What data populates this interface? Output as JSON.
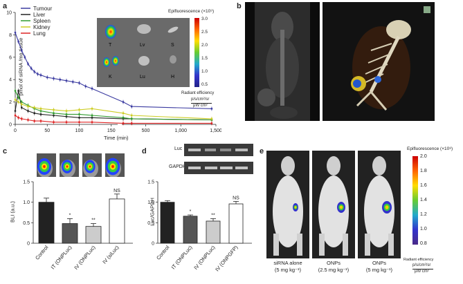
{
  "panels": {
    "a": "a",
    "b": "b",
    "c": "c",
    "d": "d",
    "e": "e"
  },
  "panel_a": {
    "ylabel": "pmol of siRNA /mg tissue",
    "xlabel": "Time (min)",
    "legend": [
      {
        "name": "Tumour",
        "color": "#3a3aa0"
      },
      {
        "name": "Liver",
        "color": "#222222"
      },
      {
        "name": "Spleen",
        "color": "#2f9a2f"
      },
      {
        "name": "Kidney",
        "color": "#cccc22"
      },
      {
        "name": "Lung",
        "color": "#dd2222"
      }
    ],
    "yticks": [
      "0",
      "2",
      "4",
      "6",
      "8",
      "10"
    ],
    "xticks": [
      "0",
      "50",
      "100",
      "150",
      "500",
      "1,000",
      "1,500"
    ],
    "inset": {
      "organs": [
        "T",
        "Lv",
        "S",
        "K",
        "Lu",
        "H"
      ],
      "scale_title": "Epifluorescence (×10⁹)",
      "scale_ticks": [
        "3.0",
        "2.5",
        "2.0",
        "1.5",
        "1.0",
        "0.5"
      ],
      "scale_caption": "Radiant efficiency",
      "scale_units_num": "p/s/cm²/sr",
      "scale_units_den": "μW cm²"
    }
  },
  "panel_c": {
    "ylabel": "BLI (a.u.)",
    "yticks": [
      "0",
      "0.5",
      "1.0",
      "1.5"
    ],
    "categories": [
      "Control",
      "IT (ONPLuc)",
      "IV (ONPLuc)",
      "IV (siLuc)"
    ],
    "annotations": [
      "",
      "*",
      "**",
      "NS"
    ]
  },
  "panel_d": {
    "blot_labels": [
      "Luc",
      "GAPDH"
    ],
    "ylabel": "Luc/GAPDH",
    "yticks": [
      "0",
      "0.5",
      "1.0",
      "1.5"
    ],
    "categories": [
      "Control",
      "IT (ONPLuc)",
      "IV (ONPLuc)",
      "IV (ONPGFP)"
    ],
    "annotations": [
      "",
      "*",
      "**",
      "NS"
    ]
  },
  "panel_e": {
    "scale_title": "Epifluorescence (×10⁸)",
    "scale_ticks": [
      "2.0",
      "1.8",
      "1.6",
      "1.4",
      "1.2",
      "1.0",
      "0.8"
    ],
    "scale_caption": "Radiant efficiency",
    "scale_units_num": "p/s/cm²/sr",
    "scale_units_den": "μW cm²",
    "captions": [
      {
        "line1": "siRNA alone",
        "line2": "(5 mg kg⁻¹)"
      },
      {
        "line1": "ONPs",
        "line2": "(2.5 mg kg⁻¹)"
      },
      {
        "line1": "ONPs",
        "line2": "(5 mg kg⁻¹)"
      }
    ]
  },
  "chart_data": [
    {
      "type": "line",
      "panel": "a",
      "xlabel": "Time (min)",
      "ylabel": "pmol of siRNA /mg tissue",
      "ylim": [
        0,
        10
      ],
      "series": [
        {
          "name": "Tumour",
          "x": [
            0,
            5,
            10,
            15,
            20,
            25,
            30,
            35,
            40,
            50,
            60,
            70,
            80,
            90,
            100,
            110,
            120,
            180,
            300,
            1440
          ],
          "values": [
            8.2,
            7.4,
            6.6,
            6.0,
            5.4,
            5.0,
            4.7,
            4.5,
            4.4,
            4.2,
            4.1,
            4.0,
            3.9,
            3.8,
            3.7,
            3.4,
            3.2,
            2.0,
            1.6,
            1.4
          ]
        },
        {
          "name": "Liver",
          "x": [
            0,
            5,
            10,
            20,
            30,
            40,
            60,
            80,
            100,
            120,
            180,
            300,
            1440
          ],
          "values": [
            1.2,
            3.0,
            1.5,
            1.2,
            1.0,
            0.9,
            0.8,
            0.7,
            0.6,
            0.6,
            0.5,
            0.5,
            0.4
          ]
        },
        {
          "name": "Spleen",
          "x": [
            0,
            5,
            10,
            20,
            30,
            40,
            60,
            80,
            100,
            120,
            180,
            300,
            1440
          ],
          "values": [
            3.0,
            2.4,
            2.0,
            1.7,
            1.4,
            1.2,
            1.0,
            0.9,
            0.9,
            0.8,
            0.6,
            0.5,
            0.4
          ]
        },
        {
          "name": "Kidney",
          "x": [
            0,
            5,
            10,
            20,
            30,
            40,
            60,
            80,
            100,
            120,
            180,
            300,
            1440
          ],
          "values": [
            2.2,
            2.0,
            1.8,
            1.6,
            1.5,
            1.4,
            1.3,
            1.2,
            1.3,
            1.4,
            1.0,
            0.8,
            0.5
          ]
        },
        {
          "name": "Lung",
          "x": [
            0,
            5,
            10,
            20,
            30,
            40,
            60,
            80,
            100,
            120,
            180,
            300,
            1440
          ],
          "values": [
            0.8,
            0.6,
            0.5,
            0.4,
            0.3,
            0.3,
            0.2,
            0.2,
            0.2,
            0.2,
            0.1,
            0.1,
            0.1
          ]
        }
      ]
    },
    {
      "type": "bar",
      "panel": "c",
      "ylabel": "BLI (a.u.)",
      "ylim": [
        0,
        1.5
      ],
      "categories": [
        "Control",
        "IT (ONPLuc)",
        "IV (ONPLuc)",
        "IV (siLuc)"
      ],
      "values": [
        1.0,
        0.48,
        0.41,
        1.08
      ],
      "errors": [
        0.1,
        0.12,
        0.07,
        0.12
      ],
      "colors": [
        "#222222",
        "#555555",
        "#cccccc",
        "#ffffff"
      ]
    },
    {
      "type": "bar",
      "panel": "d",
      "ylabel": "Luc/GAPDH",
      "ylim": [
        0,
        1.5
      ],
      "categories": [
        "Control",
        "IT (ONPLuc)",
        "IV (ONPLuc)",
        "IV (ONPGFP)"
      ],
      "values": [
        1.0,
        0.66,
        0.54,
        0.96
      ],
      "errors": [
        0.04,
        0.03,
        0.06,
        0.06
      ],
      "colors": [
        "#222222",
        "#555555",
        "#cccccc",
        "#ffffff"
      ]
    }
  ]
}
